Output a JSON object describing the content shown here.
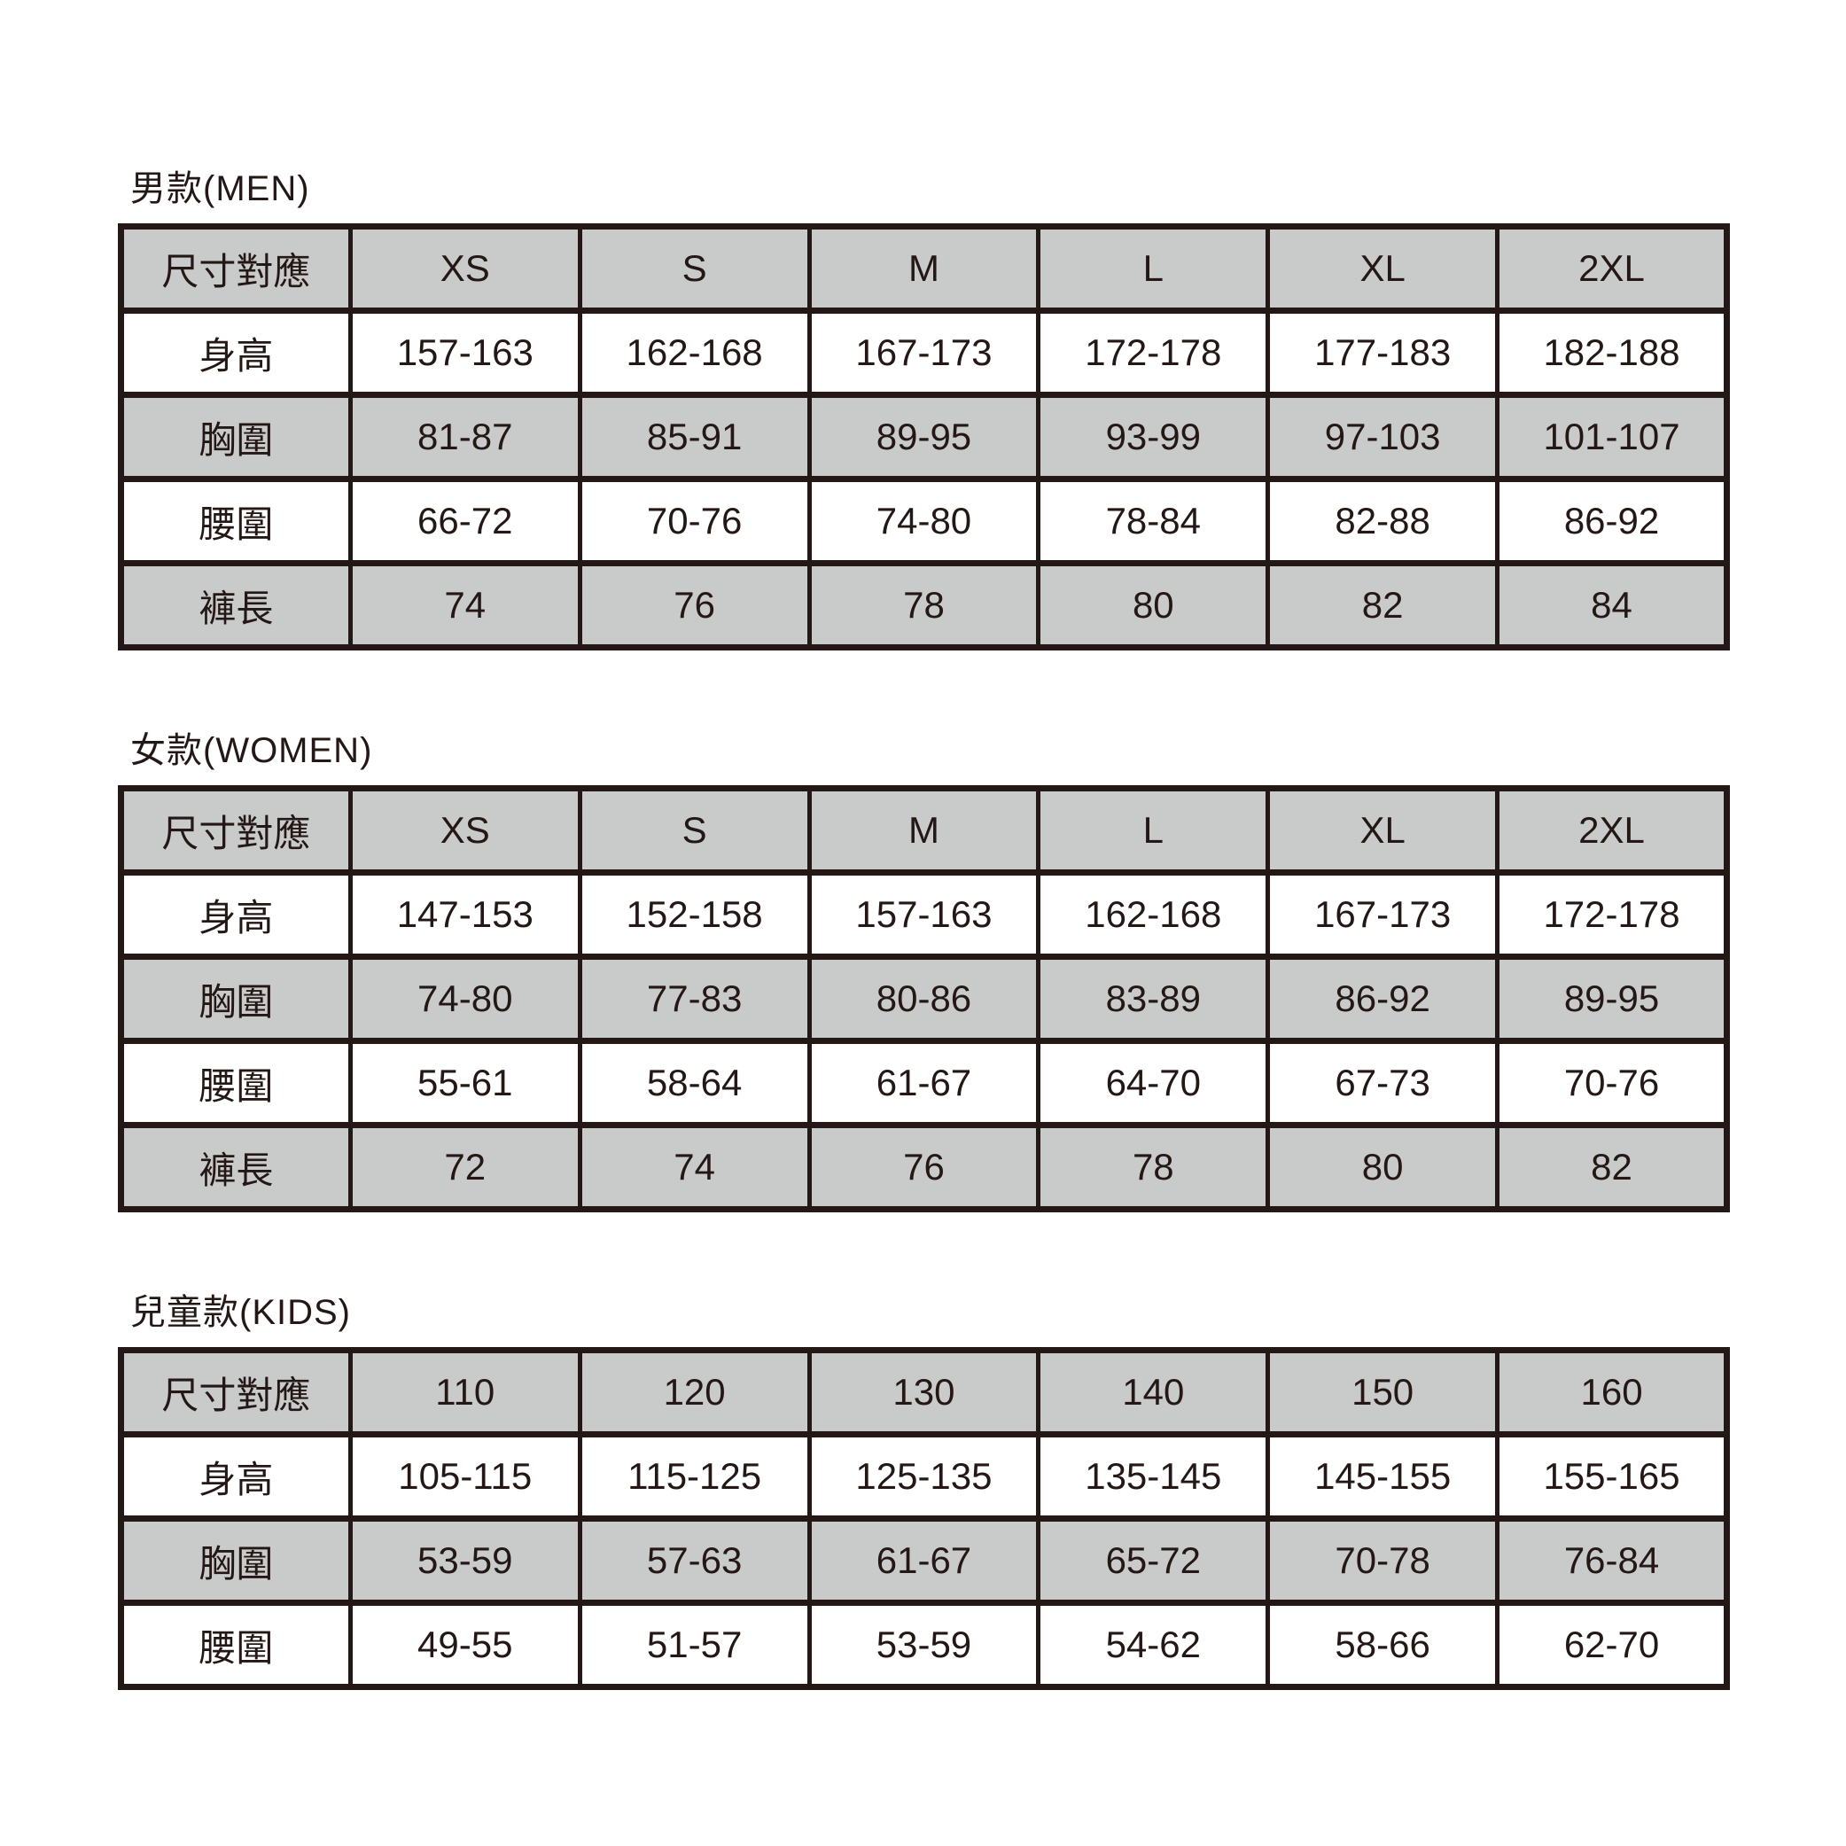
{
  "page": {
    "colors": {
      "background": "#ffffff",
      "line": "#231815",
      "text": "#231815",
      "row_gray": "#c9caca",
      "row_white": "#ffffff"
    }
  },
  "chart_data": [
    {
      "type": "table",
      "title": "男款(MEN)",
      "columns": [
        "尺寸對應",
        "XS",
        "S",
        "M",
        "L",
        "XL",
        "2XL"
      ],
      "rows": [
        {
          "label": "身高",
          "values": [
            "157-163",
            "162-168",
            "167-173",
            "172-178",
            "177-183",
            "182-188"
          ]
        },
        {
          "label": "胸圍",
          "values": [
            "81-87",
            "85-91",
            "89-95",
            "93-99",
            "97-103",
            "101-107"
          ]
        },
        {
          "label": "腰圍",
          "values": [
            "66-72",
            "70-76",
            "74-80",
            "78-84",
            "82-88",
            "86-92"
          ]
        },
        {
          "label": "褲長",
          "values": [
            "74",
            "76",
            "78",
            "80",
            "82",
            "84"
          ]
        }
      ]
    },
    {
      "type": "table",
      "title": "女款(WOMEN)",
      "columns": [
        "尺寸對應",
        "XS",
        "S",
        "M",
        "L",
        "XL",
        "2XL"
      ],
      "rows": [
        {
          "label": "身高",
          "values": [
            "147-153",
            "152-158",
            "157-163",
            "162-168",
            "167-173",
            "172-178"
          ]
        },
        {
          "label": "胸圍",
          "values": [
            "74-80",
            "77-83",
            "80-86",
            "83-89",
            "86-92",
            "89-95"
          ]
        },
        {
          "label": "腰圍",
          "values": [
            "55-61",
            "58-64",
            "61-67",
            "64-70",
            "67-73",
            "70-76"
          ]
        },
        {
          "label": "褲長",
          "values": [
            "72",
            "74",
            "76",
            "78",
            "80",
            "82"
          ]
        }
      ]
    },
    {
      "type": "table",
      "title": "兒童款(KIDS)",
      "columns": [
        "尺寸對應",
        "110",
        "120",
        "130",
        "140",
        "150",
        "160"
      ],
      "rows": [
        {
          "label": "身高",
          "values": [
            "105-115",
            "115-125",
            "125-135",
            "135-145",
            "145-155",
            "155-165"
          ]
        },
        {
          "label": "胸圍",
          "values": [
            "53-59",
            "57-63",
            "61-67",
            "65-72",
            "70-78",
            "76-84"
          ]
        },
        {
          "label": "腰圍",
          "values": [
            "49-55",
            "51-57",
            "53-59",
            "54-62",
            "58-66",
            "62-70"
          ]
        }
      ]
    }
  ]
}
